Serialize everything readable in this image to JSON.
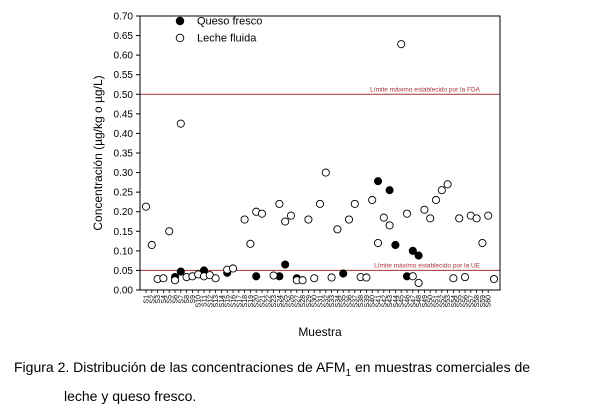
{
  "chart_data": {
    "type": "scatter",
    "xlabel": "Muestra",
    "ylabel": "Concentración (µg/kg o µg/L)",
    "ylim": [
      0,
      0.7
    ],
    "yticks": [
      "0.00",
      "0.05",
      "0.10",
      "0.15",
      "0.20",
      "0.25",
      "0.30",
      "0.35",
      "0.40",
      "0.45",
      "0.50",
      "0.55",
      "0.60",
      "0.65",
      "0.70"
    ],
    "categories": [
      "S1",
      "S2",
      "S3",
      "S4",
      "S5",
      "S6",
      "S7",
      "S8",
      "S9",
      "S10",
      "S11",
      "S12",
      "S13",
      "S14",
      "S15",
      "S16",
      "S17",
      "S18",
      "S19",
      "S20",
      "S21",
      "S22",
      "S23",
      "S24",
      "S25",
      "S26",
      "S27",
      "S28",
      "S29",
      "S30",
      "S31",
      "S32",
      "S33",
      "S34",
      "S35",
      "S36",
      "S37",
      "S38",
      "S39",
      "S40",
      "S41",
      "S42",
      "S43",
      "S44",
      "S45",
      "S46",
      "S47",
      "S48",
      "S49",
      "S50",
      "S51",
      "S52",
      "S53",
      "S54",
      "S55",
      "S56",
      "S57",
      "S58",
      "S59",
      "S60"
    ],
    "legend_position": "top-left",
    "series": [
      {
        "name": "Queso fresco",
        "marker": "filled-circle",
        "color": "#000000",
        "points": [
          [
            6,
            0.033
          ],
          [
            7,
            0.047
          ],
          [
            11,
            0.05
          ],
          [
            15,
            0.044
          ],
          [
            20,
            0.035
          ],
          [
            24,
            0.035
          ],
          [
            25,
            0.065
          ],
          [
            27,
            0.03
          ],
          [
            35,
            0.042
          ],
          [
            41,
            0.278
          ],
          [
            43,
            0.255
          ],
          [
            44,
            0.115
          ],
          [
            46,
            0.035
          ],
          [
            47,
            0.1
          ],
          [
            48,
            0.088
          ]
        ]
      },
      {
        "name": "Leche fluida",
        "marker": "open-circle",
        "color": "#000000",
        "points": [
          [
            1,
            0.213
          ],
          [
            2,
            0.115
          ],
          [
            3,
            0.028
          ],
          [
            4,
            0.03
          ],
          [
            5,
            0.15
          ],
          [
            6,
            0.025
          ],
          [
            7,
            0.425
          ],
          [
            8,
            0.033
          ],
          [
            9,
            0.035
          ],
          [
            10,
            0.04
          ],
          [
            11,
            0.035
          ],
          [
            12,
            0.038
          ],
          [
            13,
            0.03
          ],
          [
            15,
            0.052
          ],
          [
            16,
            0.055
          ],
          [
            18,
            0.18
          ],
          [
            19,
            0.118
          ],
          [
            20,
            0.2
          ],
          [
            21,
            0.195
          ],
          [
            23,
            0.037
          ],
          [
            24,
            0.22
          ],
          [
            25,
            0.175
          ],
          [
            26,
            0.19
          ],
          [
            27,
            0.025
          ],
          [
            28,
            0.025
          ],
          [
            29,
            0.18
          ],
          [
            30,
            0.03
          ],
          [
            31,
            0.22
          ],
          [
            32,
            0.3
          ],
          [
            33,
            0.032
          ],
          [
            34,
            0.155
          ],
          [
            36,
            0.18
          ],
          [
            37,
            0.22
          ],
          [
            38,
            0.033
          ],
          [
            39,
            0.032
          ],
          [
            40,
            0.23
          ],
          [
            41,
            0.12
          ],
          [
            42,
            0.185
          ],
          [
            43,
            0.165
          ],
          [
            45,
            0.628
          ],
          [
            46,
            0.195
          ],
          [
            47,
            0.035
          ],
          [
            48,
            0.018
          ],
          [
            49,
            0.205
          ],
          [
            50,
            0.183
          ],
          [
            51,
            0.23
          ],
          [
            52,
            0.255
          ],
          [
            53,
            0.27
          ],
          [
            54,
            0.03
          ],
          [
            55,
            0.183
          ],
          [
            56,
            0.033
          ],
          [
            57,
            0.19
          ],
          [
            58,
            0.183
          ],
          [
            59,
            0.12
          ],
          [
            60,
            0.19
          ],
          [
            61,
            0.028
          ]
        ]
      }
    ],
    "reference_lines": [
      {
        "value": 0.5,
        "label": "Límite máximo establecido por la FDA",
        "color": "#a83232"
      },
      {
        "value": 0.05,
        "label": "Límite máximo establecido por la UE",
        "color": "#a83232"
      }
    ]
  },
  "caption": {
    "line1": "Figura 2. Distribución de las concentraciones de AFM",
    "subscript": "1",
    "line1_end": " en muestras comerciales de",
    "line2": "leche y queso fresco."
  }
}
